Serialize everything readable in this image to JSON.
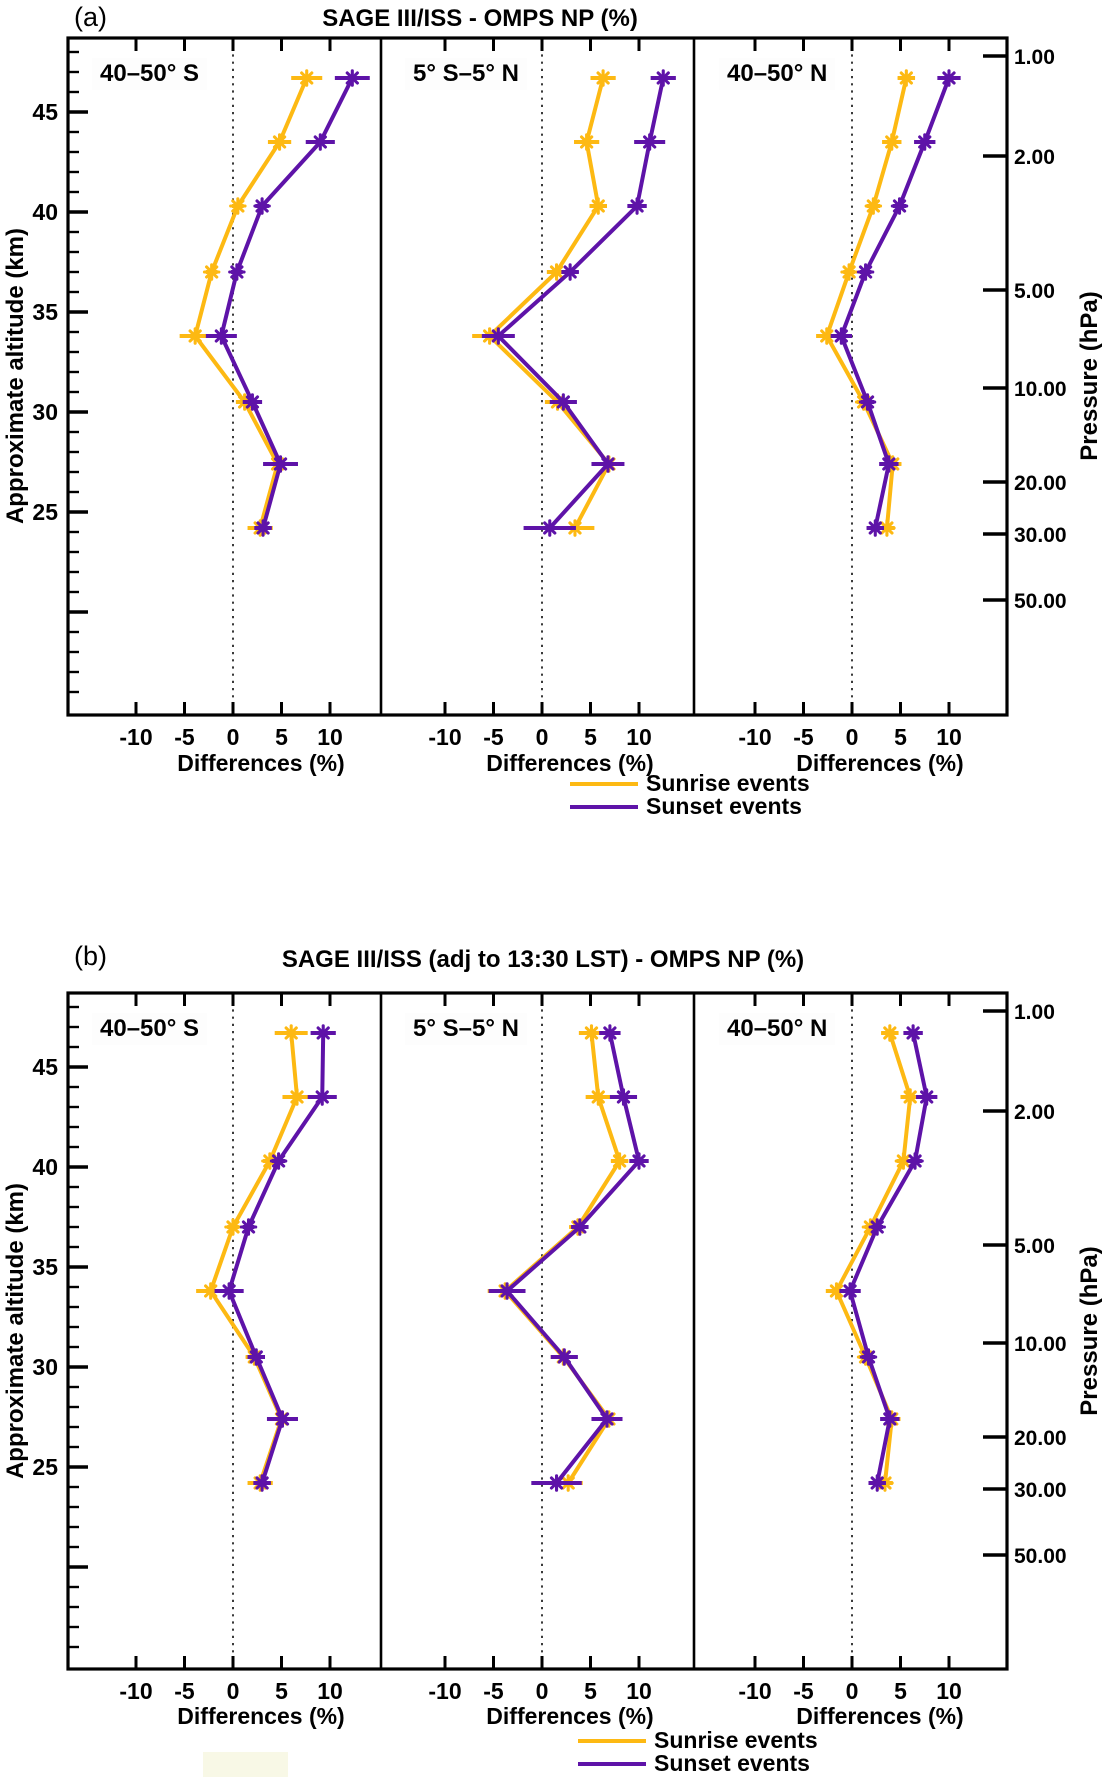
{
  "chart_data": [
    {
      "type": "line",
      "panel_label": "(a)",
      "title": "SAGE III/ISS - OMPS NP (%)",
      "xlabel": "Differences (%)",
      "ylabel_left": "Approximate altitude (km)",
      "ylabel_right": "Pressure (hPa)",
      "x_ticks": [
        -10,
        -5,
        0,
        5,
        10
      ],
      "xlim": [
        -17,
        16
      ],
      "altitude_tick_labels": [
        25,
        30,
        35,
        40,
        45
      ],
      "pressure_ticks": [
        {
          "label": "1.00",
          "alt": 47.8
        },
        {
          "label": "2.00",
          "alt": 42.8
        },
        {
          "label": "5.00",
          "alt": 36.1
        },
        {
          "label": "10.00",
          "alt": 31.2
        },
        {
          "label": "20.00",
          "alt": 26.5
        },
        {
          "label": "30.00",
          "alt": 23.9
        },
        {
          "label": "50.00",
          "alt": 20.6
        }
      ],
      "altitudes_km": [
        46.7,
        43.5,
        40.3,
        37.0,
        33.8,
        30.5,
        27.4,
        24.2
      ],
      "legend": [
        {
          "label": "Sunrise events",
          "color": "#FDB913"
        },
        {
          "label": "Sunset events",
          "color": "#5E13A8"
        }
      ],
      "subplots": [
        {
          "label": "40–50° S",
          "series": [
            {
              "name": "Sunrise events",
              "color": "#FDB913",
              "values": [
                7.6,
                4.8,
                0.5,
                -2.2,
                -3.9,
                1.2,
                4.6,
                2.8
              ],
              "xerr": [
                1.6,
                1.2,
                0.6,
                0.6,
                1.6,
                0.9,
                0.9,
                1.3
              ]
            },
            {
              "name": "Sunset events",
              "color": "#5E13A8",
              "values": [
                12.3,
                9.0,
                3.0,
                0.4,
                -1.2,
                2.0,
                4.9,
                3.1
              ],
              "xerr": [
                1.8,
                1.5,
                0.7,
                0.6,
                1.6,
                1.0,
                1.8,
                0.9
              ]
            }
          ]
        },
        {
          "label": "5° S–5° N",
          "series": [
            {
              "name": "Sunrise events",
              "color": "#FDB913",
              "values": [
                6.3,
                4.6,
                5.8,
                1.5,
                -5.4,
                1.6,
                6.9,
                3.4
              ],
              "xerr": [
                1.3,
                1.3,
                0.9,
                1.0,
                1.8,
                1.3,
                1.3,
                2.0
              ]
            },
            {
              "name": "Sunset events",
              "color": "#5E13A8",
              "values": [
                12.5,
                11.1,
                9.8,
                2.9,
                -4.5,
                2.2,
                6.8,
                0.8
              ],
              "xerr": [
                1.3,
                1.6,
                1.0,
                0.9,
                1.7,
                1.4,
                1.7,
                2.7
              ]
            }
          ]
        },
        {
          "label": "40–50° N",
          "series": [
            {
              "name": "Sunrise events",
              "color": "#FDB913",
              "values": [
                5.6,
                4.1,
                2.2,
                -0.3,
                -2.6,
                1.2,
                4.2,
                3.6
              ],
              "xerr": [
                0.9,
                1.0,
                0.7,
                0.6,
                1.1,
                0.7,
                0.9,
                0.8
              ]
            },
            {
              "name": "Sunset events",
              "color": "#5E13A8",
              "values": [
                10.0,
                7.5,
                4.9,
                1.4,
                -1.1,
                1.6,
                3.8,
                2.4
              ],
              "xerr": [
                1.2,
                1.1,
                0.7,
                0.6,
                1.1,
                0.7,
                1.0,
                0.9
              ]
            }
          ]
        }
      ]
    },
    {
      "type": "line",
      "panel_label": "(b)",
      "title": "SAGE III/ISS (adj to 13:30 LST) - OMPS NP (%)",
      "xlabel": "Differences (%)",
      "ylabel_left": "Approximate altitude (km)",
      "ylabel_right": "Pressure (hPa)",
      "x_ticks": [
        -10,
        -5,
        0,
        5,
        10
      ],
      "xlim": [
        -17,
        16
      ],
      "altitude_tick_labels": [
        25,
        30,
        35,
        40,
        45
      ],
      "pressure_ticks": [
        {
          "label": "1.00",
          "alt": 47.8
        },
        {
          "label": "2.00",
          "alt": 42.8
        },
        {
          "label": "5.00",
          "alt": 36.1
        },
        {
          "label": "10.00",
          "alt": 31.2
        },
        {
          "label": "20.00",
          "alt": 26.5
        },
        {
          "label": "30.00",
          "alt": 23.9
        },
        {
          "label": "50.00",
          "alt": 20.6
        }
      ],
      "altitudes_km": [
        46.7,
        43.5,
        40.3,
        37.0,
        33.8,
        30.5,
        27.4,
        24.2
      ],
      "legend": [
        {
          "label": "Sunrise events",
          "color": "#FDB913"
        },
        {
          "label": "Sunset events",
          "color": "#5E13A8"
        }
      ],
      "subplots": [
        {
          "label": "40–50° S",
          "series": [
            {
              "name": "Sunrise events",
              "color": "#FDB913",
              "values": [
                6.0,
                6.6,
                3.8,
                0.0,
                -2.3,
                2.2,
                5.0,
                2.8
              ],
              "xerr": [
                1.7,
                1.5,
                0.7,
                0.6,
                1.5,
                0.9,
                0.9,
                1.3
              ]
            },
            {
              "name": "Sunset events",
              "color": "#5E13A8",
              "values": [
                9.3,
                9.2,
                4.7,
                1.6,
                -0.4,
                2.4,
                5.1,
                3.0
              ],
              "xerr": [
                1.3,
                1.5,
                0.7,
                0.6,
                1.5,
                0.9,
                1.6,
                0.9
              ]
            }
          ]
        },
        {
          "label": "5° S–5° N",
          "series": [
            {
              "name": "Sunrise events",
              "color": "#FDB913",
              "values": [
                5.1,
                5.8,
                8.0,
                3.7,
                -3.8,
                2.2,
                6.9,
                2.7
              ],
              "xerr": [
                1.3,
                1.3,
                0.9,
                0.9,
                1.8,
                1.3,
                1.3,
                1.5
              ]
            },
            {
              "name": "Sunset events",
              "color": "#5E13A8",
              "values": [
                7.0,
                8.4,
                10.0,
                3.9,
                -3.6,
                2.3,
                6.7,
                1.5
              ],
              "xerr": [
                1.1,
                1.4,
                1.0,
                0.9,
                1.9,
                1.4,
                1.6,
                2.6
              ]
            }
          ]
        },
        {
          "label": "40–50° N",
          "series": [
            {
              "name": "Sunrise events",
              "color": "#FDB913",
              "values": [
                3.9,
                6.0,
                5.3,
                1.9,
                -1.6,
                1.4,
                4.1,
                3.4
              ],
              "xerr": [
                0.9,
                1.0,
                0.7,
                0.6,
                1.1,
                0.7,
                0.9,
                0.8
              ]
            },
            {
              "name": "Sunset events",
              "color": "#5E13A8",
              "values": [
                6.3,
                7.7,
                6.5,
                2.6,
                -0.2,
                1.7,
                3.9,
                2.6
              ],
              "xerr": [
                1.0,
                1.1,
                0.7,
                0.6,
                1.1,
                0.7,
                1.0,
                0.9
              ]
            }
          ]
        }
      ]
    }
  ]
}
